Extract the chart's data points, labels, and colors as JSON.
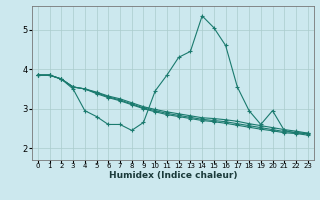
{
  "title": "",
  "xlabel": "Humidex (Indice chaleur)",
  "bg_color": "#cce8ee",
  "grid_color": "#aacccc",
  "line_color": "#1a7a6e",
  "marker": "+",
  "xlim": [
    -0.5,
    23.5
  ],
  "ylim": [
    1.7,
    5.6
  ],
  "xticks": [
    0,
    1,
    2,
    3,
    4,
    5,
    6,
    7,
    8,
    9,
    10,
    11,
    12,
    13,
    14,
    15,
    16,
    17,
    18,
    19,
    20,
    21,
    22,
    23
  ],
  "yticks": [
    2,
    3,
    4,
    5
  ],
  "series": [
    [
      3.85,
      3.85,
      3.75,
      3.5,
      2.95,
      2.8,
      2.6,
      2.6,
      2.45,
      2.65,
      3.45,
      3.85,
      4.3,
      4.45,
      5.35,
      5.05,
      4.6,
      3.55,
      2.95,
      2.6,
      2.95,
      2.45,
      2.38,
      2.38
    ],
    [
      3.85,
      3.85,
      3.75,
      3.55,
      3.5,
      3.42,
      3.32,
      3.25,
      3.15,
      3.05,
      2.98,
      2.92,
      2.87,
      2.82,
      2.77,
      2.75,
      2.72,
      2.68,
      2.62,
      2.57,
      2.52,
      2.47,
      2.43,
      2.38
    ],
    [
      3.85,
      3.85,
      3.75,
      3.55,
      3.5,
      3.4,
      3.3,
      3.22,
      3.12,
      3.02,
      2.95,
      2.88,
      2.83,
      2.78,
      2.73,
      2.7,
      2.67,
      2.62,
      2.57,
      2.52,
      2.47,
      2.42,
      2.4,
      2.36
    ],
    [
      3.85,
      3.85,
      3.75,
      3.55,
      3.5,
      3.38,
      3.28,
      3.2,
      3.1,
      3.0,
      2.92,
      2.85,
      2.8,
      2.75,
      2.7,
      2.67,
      2.63,
      2.58,
      2.53,
      2.48,
      2.44,
      2.39,
      2.37,
      2.33
    ]
  ]
}
